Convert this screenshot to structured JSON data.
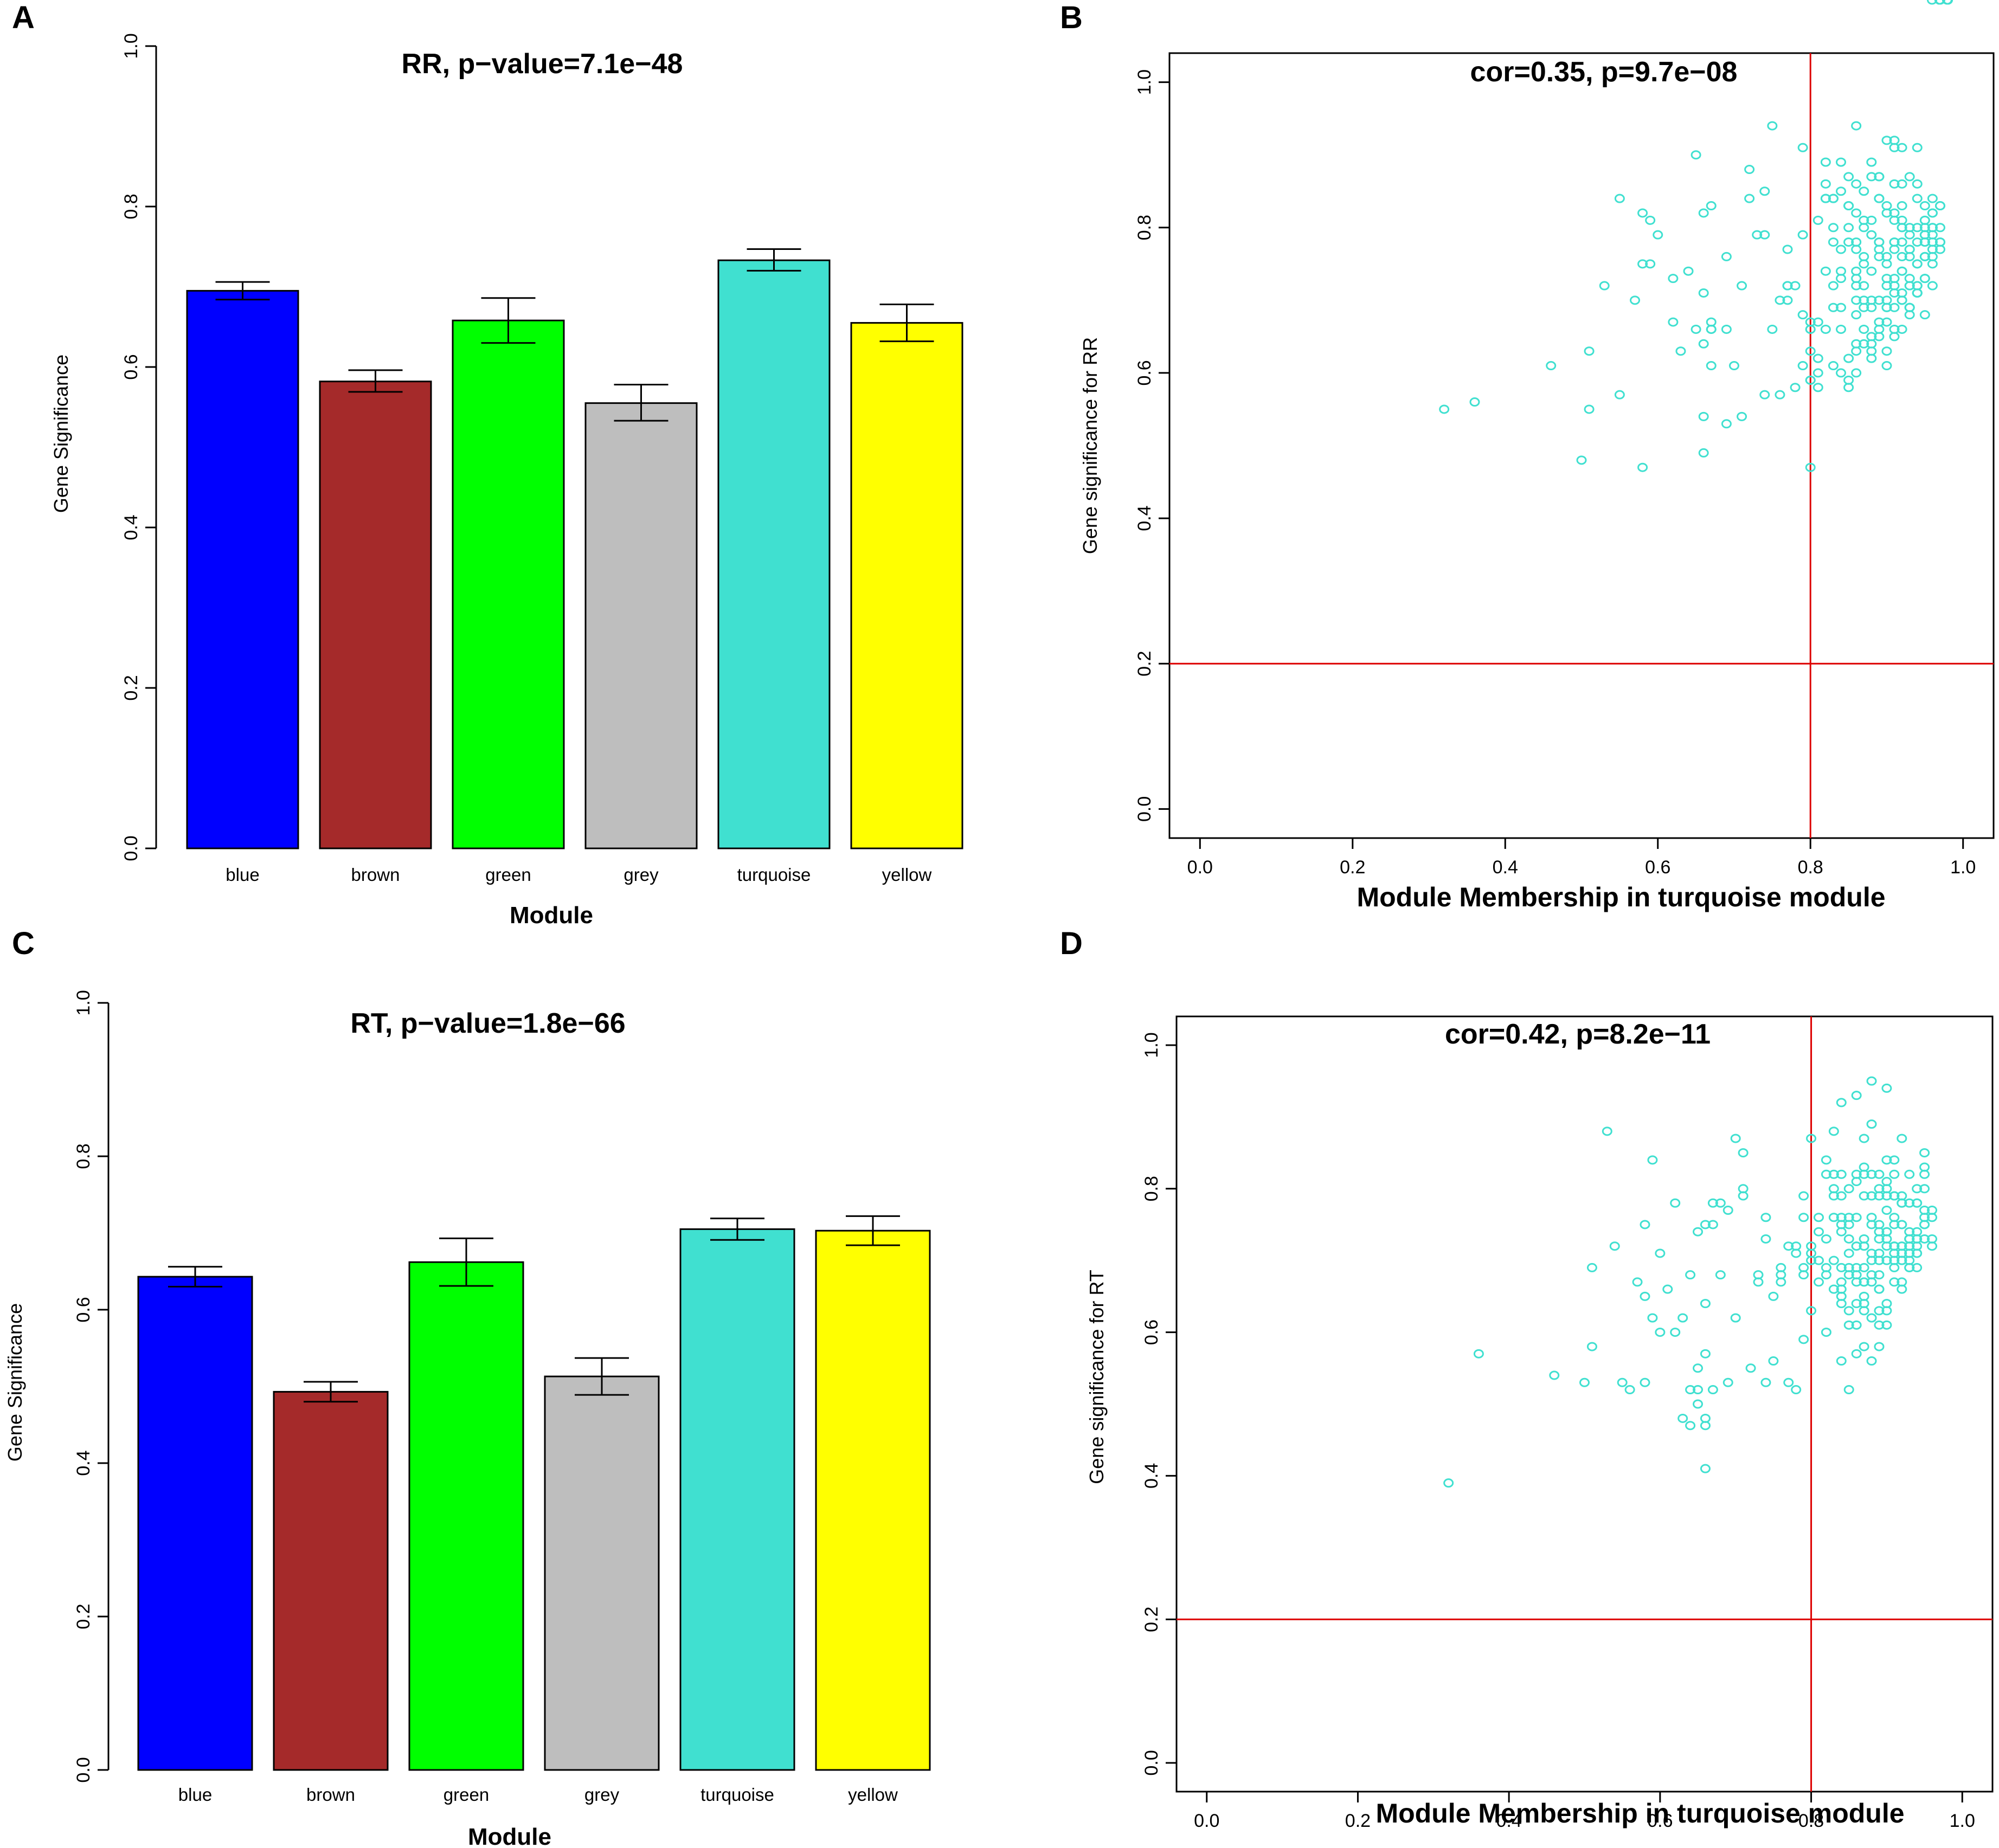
{
  "figure": {
    "panel_labels": [
      "A",
      "B",
      "C",
      "D"
    ]
  },
  "chart_data": [
    {
      "panel": "A",
      "type": "bar",
      "title": "RR, p−value=7.1e−48",
      "xlabel": "Module",
      "ylabel": "Gene Significance",
      "categories": [
        "blue",
        "brown",
        "green",
        "grey",
        "turquoise",
        "yellow"
      ],
      "colors": [
        "#0000ff",
        "#a52a2a",
        "#00ff00",
        "#bebebe",
        "#40e0d0",
        "#ffff00"
      ],
      "values": [
        0.695,
        0.582,
        0.658,
        0.555,
        0.733,
        0.655
      ],
      "error_upper": [
        0.706,
        0.596,
        0.686,
        0.578,
        0.747,
        0.678
      ],
      "error_lower": [
        0.684,
        0.569,
        0.63,
        0.533,
        0.72,
        0.632
      ],
      "yticks": [
        "0.0",
        "0.2",
        "0.4",
        "0.6",
        "0.8",
        "1.0"
      ],
      "ylim": [
        0,
        1
      ]
    },
    {
      "panel": "B",
      "type": "scatter",
      "title": "cor=0.35, p=9.7e−08",
      "xlabel": "Module Membership in turquoise module",
      "ylabel": "Gene significance for RR",
      "xticks": [
        "0.0",
        "0.2",
        "0.4",
        "0.6",
        "0.8",
        "1.0"
      ],
      "yticks": [
        "0.0",
        "0.2",
        "0.4",
        "0.6",
        "0.8",
        "1.0"
      ],
      "xlim": [
        -0.04,
        1.04
      ],
      "ylim": [
        -0.04,
        1.04
      ],
      "vline": 0.8,
      "hline": 0.2,
      "point_color": "#40e0d0",
      "line_color": "#dd0000",
      "points_x": [
        0.32,
        0.36,
        0.46,
        0.5,
        0.51,
        0.51,
        0.53,
        0.55,
        0.55,
        0.57,
        0.58,
        0.58,
        0.58,
        0.59,
        0.59,
        0.6,
        0.62,
        0.62,
        0.63,
        0.64,
        0.65,
        0.65,
        0.66,
        0.66,
        0.66,
        0.66,
        0.66,
        0.67,
        0.67,
        0.67,
        0.67,
        0.67,
        0.69,
        0.69,
        0.69,
        0.7,
        0.71,
        0.71,
        0.72,
        0.72,
        0.73,
        0.74,
        0.74,
        0.74,
        0.75,
        0.75,
        0.76,
        0.76,
        0.77,
        0.77,
        0.77,
        0.77,
        0.78,
        0.78,
        0.79,
        0.79,
        0.79,
        0.79,
        0.8,
        0.8,
        0.8,
        0.8,
        0.8,
        0.8,
        0.8,
        0.81,
        0.81,
        0.81,
        0.81,
        0.81,
        0.82,
        0.82,
        0.82,
        0.82,
        0.82,
        0.82,
        0.83,
        0.83,
        0.83,
        0.83,
        0.83,
        0.83,
        0.83,
        0.84,
        0.84,
        0.84,
        0.84,
        0.84,
        0.84,
        0.84,
        0.84,
        0.85,
        0.85,
        0.85,
        0.85,
        0.85,
        0.85,
        0.85,
        0.85,
        0.86,
        0.86,
        0.86,
        0.86,
        0.86,
        0.86,
        0.86,
        0.86,
        0.86,
        0.86,
        0.86,
        0.86,
        0.86,
        0.87,
        0.87,
        0.87,
        0.87,
        0.87,
        0.87,
        0.87,
        0.87,
        0.87,
        0.87,
        0.88,
        0.88,
        0.88,
        0.88,
        0.88,
        0.88,
        0.88,
        0.88,
        0.88,
        0.88,
        0.88,
        0.89,
        0.89,
        0.89,
        0.89,
        0.89,
        0.89,
        0.89,
        0.89,
        0.89,
        0.89,
        0.89,
        0.89,
        0.9,
        0.9,
        0.9,
        0.9,
        0.9,
        0.9,
        0.9,
        0.9,
        0.9,
        0.9,
        0.9,
        0.9,
        0.9,
        0.91,
        0.91,
        0.91,
        0.91,
        0.91,
        0.91,
        0.91,
        0.91,
        0.91,
        0.91,
        0.91,
        0.91,
        0.91,
        0.91,
        0.92,
        0.92,
        0.92,
        0.92,
        0.92,
        0.92,
        0.92,
        0.92,
        0.92,
        0.92,
        0.92,
        0.92,
        0.92,
        0.92,
        0.93,
        0.93,
        0.93,
        0.93,
        0.93,
        0.93,
        0.93,
        0.93,
        0.93,
        0.93,
        0.93,
        0.93,
        0.93,
        0.94,
        0.94,
        0.94,
        0.94,
        0.94,
        0.94,
        0.94,
        0.94,
        0.94,
        0.94,
        0.94,
        0.94,
        0.94,
        0.95,
        0.95,
        0.95,
        0.95,
        0.95,
        0.95,
        0.95,
        0.95,
        0.95,
        0.95,
        0.95,
        0.95,
        0.95,
        0.95,
        0.95,
        0.95,
        0.96,
        0.96,
        0.96,
        0.96,
        0.96,
        0.96,
        0.96,
        0.96,
        0.96,
        0.96,
        0.96,
        0.97,
        0.97,
        0.97,
        0.97,
        0.97,
        0.97,
        0.97,
        0.98,
        0.98
      ],
      "points_y": [
        0.55,
        0.56,
        0.61,
        0.48,
        0.55,
        0.63,
        0.72,
        0.84,
        0.57,
        0.7,
        0.82,
        0.75,
        0.47,
        0.81,
        0.75,
        0.79,
        0.67,
        0.73,
        0.63,
        0.74,
        0.9,
        0.66,
        0.49,
        0.54,
        0.82,
        0.71,
        0.64,
        0.66,
        0.61,
        0.67,
        0.66,
        0.83,
        0.53,
        0.66,
        0.76,
        0.61,
        0.54,
        0.72,
        0.84,
        0.88,
        0.79,
        0.79,
        0.57,
        0.85,
        0.94,
        0.66,
        0.57,
        0.7,
        0.72,
        0.72,
        0.77,
        0.7,
        0.58,
        0.72,
        0.68,
        0.61,
        0.79,
        0.91,
        0.66,
        0.59,
        0.67,
        0.59,
        0.47,
        0.63,
        0.66,
        0.6,
        0.58,
        0.62,
        0.81,
        0.67,
        0.89,
        0.86,
        0.74,
        0.66,
        0.84,
        0.84,
        0.78,
        0.61,
        0.69,
        0.84,
        0.84,
        0.8,
        0.72,
        0.85,
        0.89,
        0.77,
        0.74,
        0.66,
        0.69,
        0.6,
        0.73,
        0.8,
        0.78,
        0.83,
        0.62,
        0.58,
        0.87,
        0.59,
        0.83,
        0.63,
        0.72,
        0.82,
        0.94,
        0.7,
        0.74,
        0.68,
        0.86,
        0.64,
        0.6,
        0.78,
        0.73,
        0.77,
        0.7,
        0.8,
        0.85,
        0.76,
        0.64,
        0.66,
        0.75,
        0.81,
        0.69,
        0.72,
        0.69,
        0.89,
        0.87,
        0.65,
        0.81,
        0.79,
        0.74,
        0.64,
        0.7,
        0.62,
        0.63,
        0.84,
        0.87,
        0.66,
        0.77,
        0.76,
        0.84,
        0.78,
        0.65,
        0.87,
        0.78,
        0.67,
        0.7,
        0.72,
        0.63,
        0.7,
        0.75,
        0.82,
        0.73,
        0.76,
        0.61,
        0.83,
        0.92,
        0.69,
        0.67,
        0.69,
        0.81,
        0.65,
        0.91,
        0.78,
        0.73,
        0.71,
        0.86,
        0.77,
        0.66,
        0.92,
        0.78,
        0.82,
        0.72,
        0.69,
        0.74,
        0.7,
        0.8,
        0.8,
        0.86,
        0.91,
        0.81,
        0.74,
        0.71,
        0.66,
        0.78,
        0.7,
        0.76,
        0.83,
        0.69,
        0.77,
        0.72,
        0.68,
        0.72,
        0.73,
        0.69,
        0.77,
        0.8,
        0.87,
        0.79,
        0.76,
        0.69,
        0.8,
        0.72,
        0.71,
        0.86,
        0.75,
        0.84,
        0.91,
        0.71,
        0.75,
        0.71,
        0.78,
        0.72,
        0.71,
        0.78,
        0.8,
        0.79,
        0.76,
        0.78,
        0.76,
        0.68,
        0.79,
        0.83,
        0.73,
        0.78,
        0.76,
        0.73,
        0.81,
        0.79,
        0.81,
        0.75,
        0.82,
        0.72,
        0.77,
        0.76,
        0.84,
        0.82,
        0.8,
        0.79,
        0.8,
        0.78,
        0.83,
        0.78,
        0.78,
        0.83,
        0.8,
        0.77
      ],
      "correlation": "cor=0.35, p=9.7e−08"
    },
    {
      "panel": "C",
      "type": "bar",
      "title": "RT, p−value=1.8e−66",
      "xlabel": "Module",
      "ylabel": "Gene Significance",
      "categories": [
        "blue",
        "brown",
        "green",
        "grey",
        "turquoise",
        "yellow"
      ],
      "colors": [
        "#0000ff",
        "#a52a2a",
        "#00ff00",
        "#bebebe",
        "#40e0d0",
        "#ffff00"
      ],
      "values": [
        0.643,
        0.493,
        0.662,
        0.513,
        0.705,
        0.703
      ],
      "error_upper": [
        0.656,
        0.506,
        0.693,
        0.537,
        0.719,
        0.722
      ],
      "error_lower": [
        0.63,
        0.48,
        0.631,
        0.489,
        0.691,
        0.684
      ],
      "yticks": [
        "0.0",
        "0.2",
        "0.4",
        "0.6",
        "0.8",
        "1.0"
      ],
      "ylim": [
        0,
        1
      ]
    },
    {
      "panel": "D",
      "type": "scatter",
      "title": "cor=0.42, p=8.2e−11",
      "xlabel": "Module Membership in turquoise module",
      "ylabel": "Gene significance for RT",
      "xticks": [
        "0.0",
        "0.2",
        "0.4",
        "0.6",
        "0.8",
        "1.0"
      ],
      "yticks": [
        "0.0",
        "0.2",
        "0.4",
        "0.6",
        "0.8",
        "1.0"
      ],
      "xlim": [
        -0.04,
        1.04
      ],
      "ylim": [
        -0.04,
        1.04
      ],
      "vline": 0.8,
      "hline": 0.2,
      "point_color": "#40e0d0",
      "line_color": "#dd0000",
      "points_x": [
        0.32,
        0.36,
        0.46,
        0.5,
        0.51,
        0.51,
        0.53,
        0.54,
        0.55,
        0.56,
        0.57,
        0.58,
        0.58,
        0.58,
        0.59,
        0.59,
        0.6,
        0.6,
        0.61,
        0.62,
        0.62,
        0.63,
        0.63,
        0.64,
        0.64,
        0.64,
        0.65,
        0.65,
        0.65,
        0.65,
        0.66,
        0.66,
        0.66,
        0.66,
        0.66,
        0.66,
        0.67,
        0.67,
        0.67,
        0.68,
        0.68,
        0.69,
        0.69,
        0.7,
        0.7,
        0.71,
        0.71,
        0.71,
        0.72,
        0.73,
        0.73,
        0.74,
        0.74,
        0.74,
        0.75,
        0.75,
        0.76,
        0.76,
        0.76,
        0.77,
        0.77,
        0.78,
        0.78,
        0.78,
        0.79,
        0.79,
        0.79,
        0.79,
        0.79,
        0.8,
        0.8,
        0.8,
        0.8,
        0.8,
        0.81,
        0.81,
        0.81,
        0.81,
        0.82,
        0.82,
        0.82,
        0.82,
        0.82,
        0.82,
        0.83,
        0.83,
        0.83,
        0.83,
        0.83,
        0.83,
        0.83,
        0.84,
        0.84,
        0.84,
        0.84,
        0.84,
        0.84,
        0.84,
        0.84,
        0.84,
        0.84,
        0.84,
        0.84,
        0.85,
        0.85,
        0.85,
        0.85,
        0.85,
        0.85,
        0.85,
        0.85,
        0.85,
        0.85,
        0.86,
        0.86,
        0.86,
        0.86,
        0.86,
        0.86,
        0.86,
        0.86,
        0.86,
        0.86,
        0.86,
        0.86,
        0.87,
        0.87,
        0.87,
        0.87,
        0.87,
        0.87,
        0.87,
        0.87,
        0.87,
        0.87,
        0.87,
        0.87,
        0.87,
        0.87,
        0.88,
        0.88,
        0.88,
        0.88,
        0.88,
        0.88,
        0.88,
        0.88,
        0.88,
        0.88,
        0.88,
        0.88,
        0.89,
        0.89,
        0.89,
        0.89,
        0.89,
        0.89,
        0.89,
        0.89,
        0.89,
        0.89,
        0.89,
        0.89,
        0.89,
        0.89,
        0.9,
        0.9,
        0.9,
        0.9,
        0.9,
        0.9,
        0.9,
        0.9,
        0.9,
        0.9,
        0.9,
        0.9,
        0.9,
        0.9,
        0.91,
        0.91,
        0.91,
        0.91,
        0.91,
        0.91,
        0.91,
        0.91,
        0.91,
        0.91,
        0.91,
        0.91,
        0.91,
        0.91,
        0.92,
        0.92,
        0.92,
        0.92,
        0.92,
        0.92,
        0.92,
        0.92,
        0.92,
        0.92,
        0.92,
        0.92,
        0.92,
        0.93,
        0.93,
        0.93,
        0.93,
        0.93,
        0.93,
        0.93,
        0.93,
        0.93,
        0.93,
        0.93,
        0.93,
        0.93,
        0.94,
        0.94,
        0.94,
        0.94,
        0.94,
        0.94,
        0.94,
        0.94,
        0.94,
        0.94,
        0.95,
        0.95,
        0.95,
        0.95,
        0.95,
        0.95,
        0.95,
        0.95,
        0.95,
        0.96,
        0.96,
        0.96,
        0.96,
        0.96,
        0.97,
        0.97,
        0.97,
        0.98
      ],
      "points_y": [
        0.39,
        0.57,
        0.54,
        0.53,
        0.69,
        0.58,
        0.88,
        0.72,
        0.53,
        0.52,
        0.67,
        0.53,
        0.75,
        0.65,
        0.84,
        0.62,
        0.71,
        0.6,
        0.66,
        0.6,
        0.78,
        0.48,
        0.62,
        0.52,
        0.47,
        0.68,
        0.5,
        0.74,
        0.52,
        0.55,
        0.57,
        0.75,
        0.41,
        0.47,
        0.64,
        0.48,
        0.75,
        0.52,
        0.78,
        0.78,
        0.68,
        0.53,
        0.77,
        0.62,
        0.87,
        0.85,
        0.79,
        0.8,
        0.55,
        0.67,
        0.68,
        0.76,
        0.53,
        0.73,
        0.65,
        0.56,
        0.69,
        0.68,
        0.67,
        0.72,
        0.53,
        0.72,
        0.71,
        0.52,
        0.79,
        0.76,
        0.69,
        0.68,
        0.59,
        0.71,
        0.7,
        0.87,
        0.63,
        0.72,
        0.7,
        0.67,
        0.76,
        0.74,
        0.68,
        0.69,
        0.73,
        0.82,
        0.84,
        0.6,
        0.66,
        0.7,
        0.88,
        0.82,
        0.79,
        0.8,
        0.76,
        0.56,
        0.64,
        0.79,
        0.82,
        0.74,
        0.67,
        0.76,
        0.69,
        0.65,
        0.66,
        0.75,
        0.92,
        0.68,
        0.73,
        0.69,
        0.71,
        0.52,
        0.63,
        0.8,
        0.76,
        0.61,
        0.75,
        0.69,
        0.68,
        0.72,
        0.81,
        0.93,
        0.57,
        0.82,
        0.61,
        0.76,
        0.67,
        0.72,
        0.64,
        0.69,
        0.58,
        0.72,
        0.63,
        0.87,
        0.83,
        0.65,
        0.73,
        0.82,
        0.67,
        0.67,
        0.79,
        0.64,
        0.72,
        0.89,
        0.76,
        0.7,
        0.79,
        0.67,
        0.82,
        0.71,
        0.56,
        0.62,
        0.75,
        0.68,
        0.95,
        0.66,
        0.74,
        0.58,
        0.79,
        0.82,
        0.73,
        0.61,
        0.63,
        0.7,
        0.75,
        0.71,
        0.66,
        0.8,
        0.68,
        0.94,
        0.81,
        0.77,
        0.73,
        0.7,
        0.74,
        0.63,
        0.8,
        0.74,
        0.84,
        0.72,
        0.61,
        0.64,
        0.79,
        0.71,
        0.82,
        0.72,
        0.72,
        0.76,
        0.84,
        0.69,
        0.7,
        0.72,
        0.71,
        0.75,
        0.79,
        0.67,
        0.79,
        0.7,
        0.78,
        0.71,
        0.72,
        0.66,
        0.78,
        0.7,
        0.72,
        0.79,
        0.87,
        0.75,
        0.75,
        0.67,
        0.71,
        0.73,
        0.72,
        0.72,
        0.69,
        0.7,
        0.71,
        0.69,
        0.73,
        0.82,
        0.78,
        0.74,
        0.73,
        0.78,
        0.8,
        0.71,
        0.69,
        0.72,
        0.73,
        0.71,
        0.78,
        0.74,
        0.73,
        0.82,
        0.85,
        0.73,
        0.75,
        0.83,
        0.77,
        0.75,
        0.76,
        0.8,
        0.73,
        0.76,
        0.72,
        0.77
      ],
      "correlation": "cor=0.42, p=8.2e−11"
    }
  ]
}
